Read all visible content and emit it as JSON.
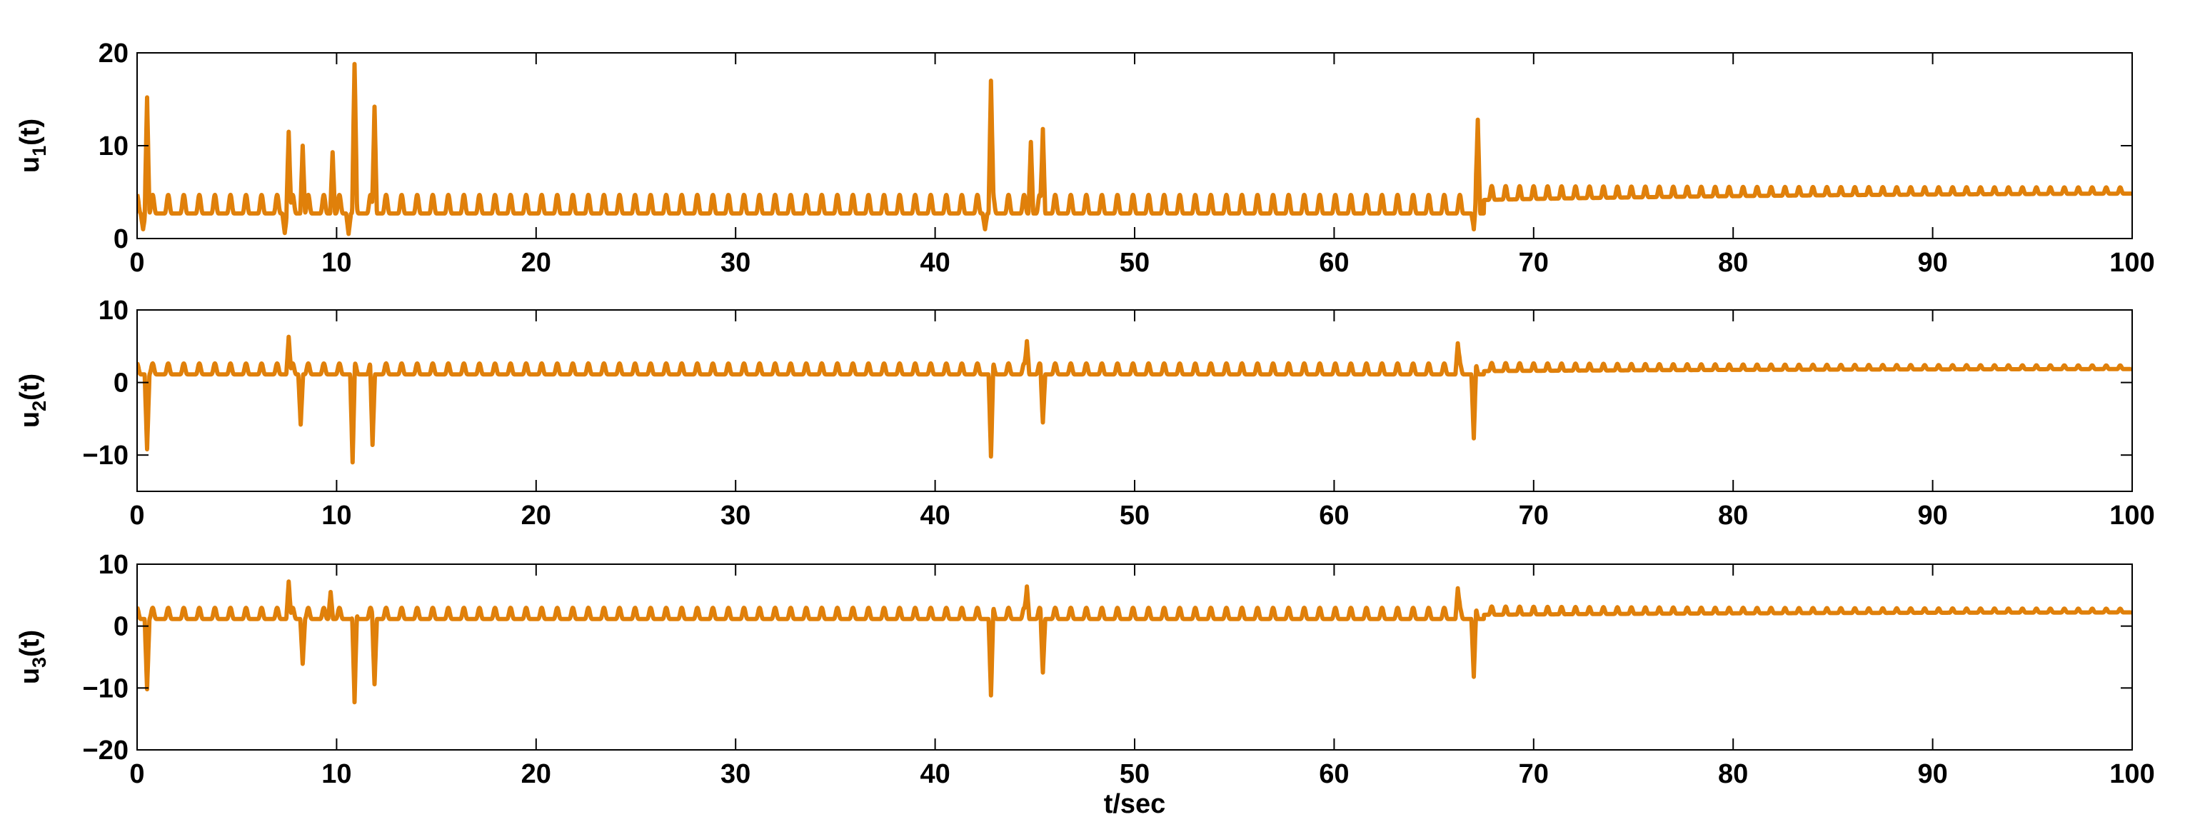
{
  "chart_data": [
    {
      "type": "line",
      "ylabel_main": "u",
      "ylabel_sub": "1",
      "ylabel_tail": "(t)",
      "xlim": [
        0,
        100
      ],
      "ylim": [
        0,
        20
      ],
      "xticks": [
        0,
        10,
        20,
        30,
        40,
        50,
        60,
        70,
        80,
        90,
        100
      ],
      "yticks": [
        0,
        10,
        20
      ],
      "color": "#E0800A",
      "signal": {
        "baseline": 3.2,
        "amplitude": 2.0,
        "decay_from": 67.5,
        "decay_value": 5.1,
        "spikes": [
          {
            "t": 0.5,
            "v": 15.2
          },
          {
            "t": 7.6,
            "v": 11.5
          },
          {
            "t": 8.3,
            "v": 10.0
          },
          {
            "t": 9.8,
            "v": 9.3
          },
          {
            "t": 10.9,
            "v": 18.8
          },
          {
            "t": 11.9,
            "v": 14.2
          },
          {
            "t": 42.8,
            "v": 17.0
          },
          {
            "t": 44.8,
            "v": 10.4
          },
          {
            "t": 45.4,
            "v": 11.8
          },
          {
            "t": 67.2,
            "v": 12.8
          }
        ],
        "dips": [
          {
            "t": 0.3,
            "v": 1.0
          },
          {
            "t": 7.4,
            "v": 0.6
          },
          {
            "t": 10.6,
            "v": 0.5
          },
          {
            "t": 42.5,
            "v": 1.0
          },
          {
            "t": 67.0,
            "v": 1.0
          }
        ]
      }
    },
    {
      "type": "line",
      "ylabel_main": "u",
      "ylabel_sub": "2",
      "ylabel_tail": "(t)",
      "xlim": [
        0,
        100
      ],
      "ylim": [
        -15,
        10
      ],
      "xticks": [
        0,
        10,
        20,
        30,
        40,
        50,
        60,
        70,
        80,
        90,
        100
      ],
      "yticks": [
        -10,
        0,
        10
      ],
      "color": "#E0800A",
      "signal": {
        "baseline": 1.5,
        "amplitude": 1.5,
        "decay_from": 67.5,
        "decay_value": 2.0,
        "spikes": [
          {
            "t": 7.6,
            "v": 6.3
          },
          {
            "t": 44.6,
            "v": 5.7
          },
          {
            "t": 66.2,
            "v": 5.4
          }
        ],
        "dips": [
          {
            "t": 0.5,
            "v": -9.2
          },
          {
            "t": 8.2,
            "v": -5.8
          },
          {
            "t": 10.8,
            "v": -11.0
          },
          {
            "t": 11.8,
            "v": -8.6
          },
          {
            "t": 42.8,
            "v": -10.2
          },
          {
            "t": 45.4,
            "v": -5.5
          },
          {
            "t": 67.0,
            "v": -7.7
          }
        ]
      }
    },
    {
      "type": "line",
      "ylabel_main": "u",
      "ylabel_sub": "3",
      "ylabel_tail": "(t)",
      "xlabel": "t/sec",
      "xlim": [
        0,
        100
      ],
      "ylim": [
        -20,
        10
      ],
      "xticks": [
        0,
        10,
        20,
        30,
        40,
        50,
        60,
        70,
        80,
        90,
        100
      ],
      "yticks": [
        -20,
        -10,
        0,
        10
      ],
      "color": "#E0800A",
      "signal": {
        "baseline": 1.6,
        "amplitude": 1.8,
        "decay_from": 67.5,
        "decay_value": 2.4,
        "spikes": [
          {
            "t": 7.6,
            "v": 7.2
          },
          {
            "t": 9.7,
            "v": 5.5
          },
          {
            "t": 44.6,
            "v": 6.4
          },
          {
            "t": 66.2,
            "v": 6.1
          }
        ],
        "dips": [
          {
            "t": 0.5,
            "v": -10.2
          },
          {
            "t": 8.3,
            "v": -6.1
          },
          {
            "t": 10.9,
            "v": -12.3
          },
          {
            "t": 11.9,
            "v": -9.4
          },
          {
            "t": 42.8,
            "v": -11.2
          },
          {
            "t": 45.4,
            "v": -7.5
          },
          {
            "t": 67.0,
            "v": -8.2
          }
        ]
      }
    }
  ]
}
